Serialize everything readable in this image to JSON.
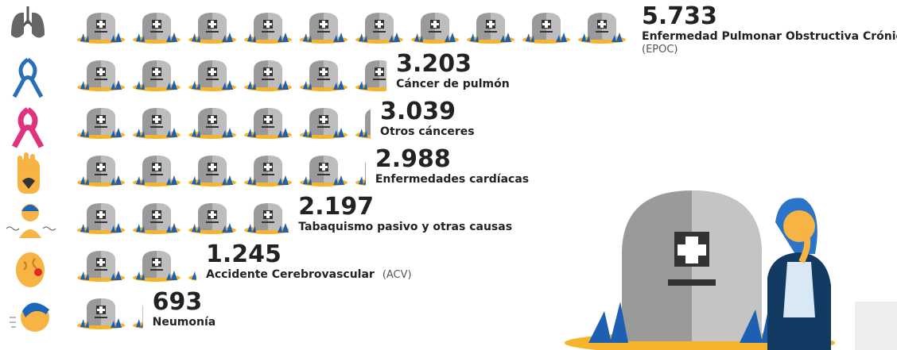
{
  "chart_data": {
    "type": "pictogram",
    "categories": [
      "Enfermedad Pulmonar Obstructiva Crónica",
      "Cáncer de pulmón",
      "Otros cánceres",
      "Enfermedades cardíacas",
      "Tabaquismo pasivo y otras causas",
      "Accidente Cerebrovascular",
      "Neumonía"
    ],
    "abbreviations": [
      "(EPOC)",
      null,
      null,
      null,
      null,
      "(ACV)",
      null
    ],
    "values": [
      5733,
      3203,
      3039,
      2988,
      2197,
      1245,
      693
    ],
    "value_labels": [
      "5.733",
      "3.203",
      "3.039",
      "2.988",
      "2.197",
      "1.245",
      "693"
    ],
    "color": "#8a8a8a"
  }
}
